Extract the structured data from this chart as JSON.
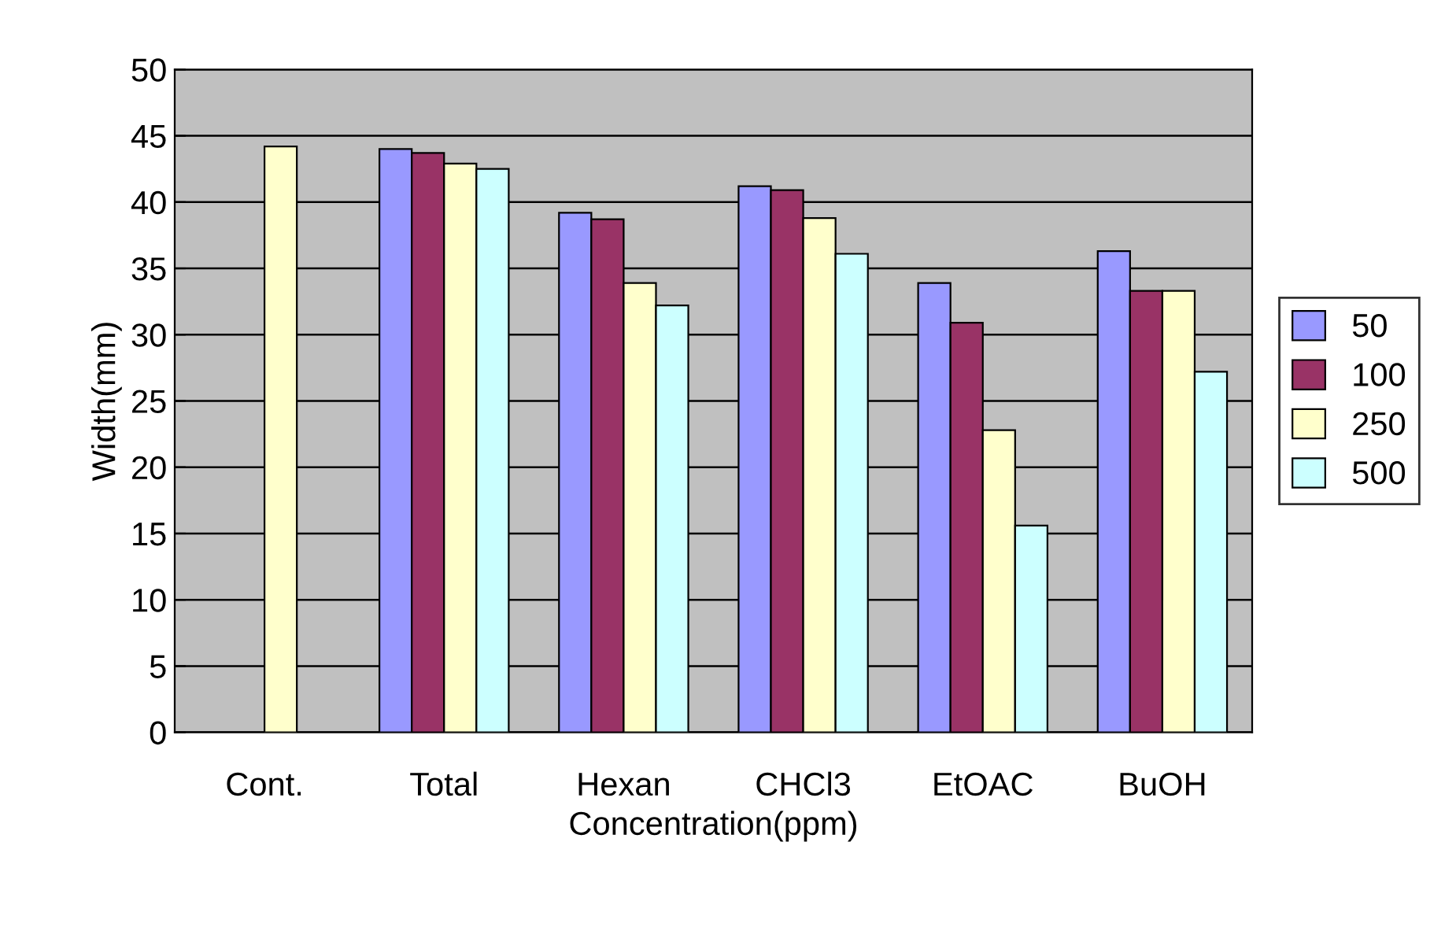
{
  "chart_data": {
    "type": "bar",
    "xlabel": "Concentration(ppm)",
    "ylabel": "Width(mm)",
    "categories": [
      "Cont.",
      "Total",
      "Hexan",
      "CHCl3",
      "EtOAC",
      "BuOH"
    ],
    "series": [
      {
        "name": "50",
        "color": "#9999ff",
        "values": [
          null,
          44.0,
          39.2,
          41.2,
          33.9,
          36.3
        ]
      },
      {
        "name": "100",
        "color": "#993366",
        "values": [
          null,
          43.7,
          38.7,
          40.9,
          30.9,
          33.3
        ]
      },
      {
        "name": "250",
        "color": "#ffffcc",
        "values": [
          44.2,
          42.9,
          33.9,
          38.8,
          22.8,
          33.3
        ]
      },
      {
        "name": "500",
        "color": "#ccffff",
        "values": [
          null,
          42.5,
          32.2,
          36.1,
          15.6,
          27.2
        ]
      }
    ],
    "ylim": [
      0,
      50
    ],
    "yticks": [
      0,
      5,
      10,
      15,
      20,
      25,
      30,
      35,
      40,
      45,
      50
    ],
    "grid": "y",
    "legend": "right"
  }
}
